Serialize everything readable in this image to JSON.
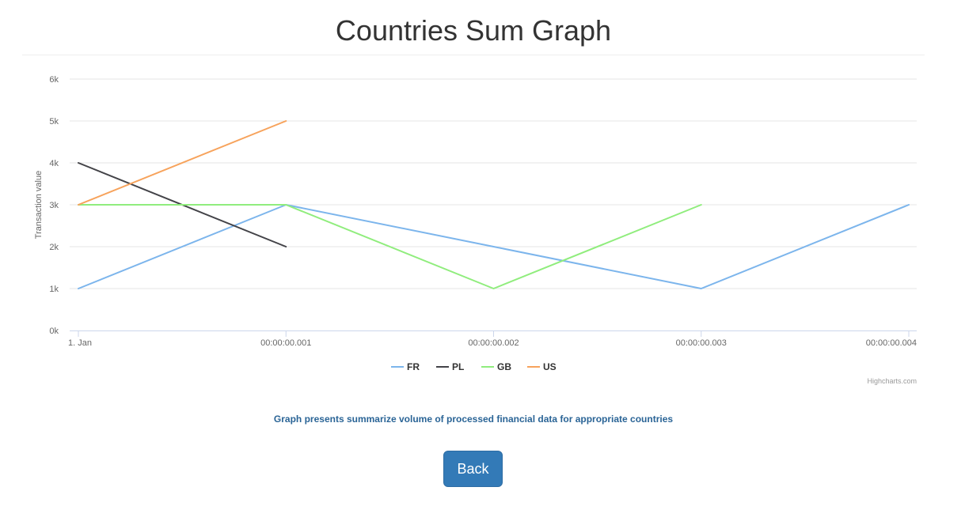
{
  "page": {
    "title": "Countries Sum Graph",
    "caption": "Graph presents summarize volume of processed financial data for appropriate countries",
    "back_label": "Back"
  },
  "chart_data": {
    "type": "line",
    "title": "",
    "ylabel": "Transaction value",
    "xlabel": "",
    "ylim": [
      0,
      6000
    ],
    "y_ticks": [
      0,
      1000,
      2000,
      3000,
      4000,
      5000,
      6000
    ],
    "y_tick_labels": [
      "0k",
      "1k",
      "2k",
      "3k",
      "4k",
      "5k",
      "6k"
    ],
    "x_tick_labels": [
      "1. Jan",
      "00:00:00.001",
      "00:00:00.002",
      "00:00:00.003",
      "00:00:00.004"
    ],
    "x_range": [
      0,
      4
    ],
    "grid": true,
    "legend_position": "bottom-center",
    "credits": "Highcharts.com",
    "series": [
      {
        "name": "FR",
        "color": "#7cb5ec",
        "x": [
          0,
          1,
          2,
          3,
          4
        ],
        "values": [
          1000,
          3000,
          2000,
          1000,
          3000
        ]
      },
      {
        "name": "PL",
        "color": "#434348",
        "x": [
          0,
          1
        ],
        "values": [
          4000,
          2000
        ]
      },
      {
        "name": "GB",
        "color": "#90ed7d",
        "x": [
          0,
          1,
          2,
          3
        ],
        "values": [
          3000,
          3000,
          1000,
          3000
        ]
      },
      {
        "name": "US",
        "color": "#f7a35c",
        "x": [
          0,
          1
        ],
        "values": [
          3000,
          5000
        ]
      }
    ]
  }
}
